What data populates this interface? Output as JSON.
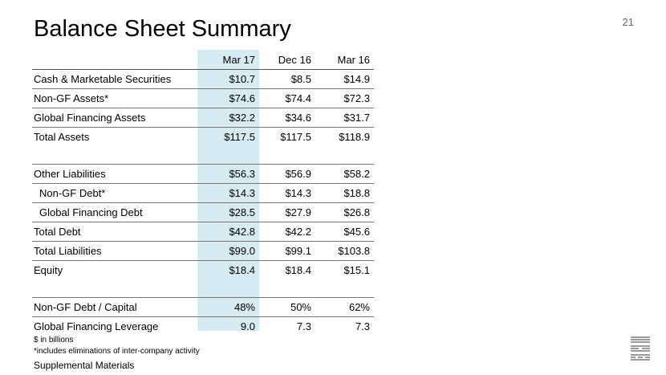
{
  "title": "Balance Sheet Summary",
  "page_number": "21",
  "columns": [
    "Mar 17",
    "Dec 16",
    "Mar 16"
  ],
  "rows": [
    {
      "label": "Cash & Marketable Securities",
      "values": [
        "$10.7",
        "$8.5",
        "$14.9"
      ]
    },
    {
      "label": "Non-GF Assets*",
      "values": [
        "$74.6",
        "$74.4",
        "$72.3"
      ]
    },
    {
      "label": "Global Financing Assets",
      "values": [
        "$32.2",
        "$34.6",
        "$31.7"
      ]
    },
    {
      "label": "Total Assets",
      "values": [
        "$117.5",
        "$117.5",
        "$118.9"
      ]
    },
    {
      "label": "Other Liabilities",
      "values": [
        "$56.3",
        "$56.9",
        "$58.2"
      ]
    },
    {
      "label": "Non-GF Debt*",
      "values": [
        "$14.3",
        "$14.3",
        "$18.8"
      ]
    },
    {
      "label": "Global Financing Debt",
      "values": [
        "$28.5",
        "$27.9",
        "$26.8"
      ]
    },
    {
      "label": "Total Debt",
      "values": [
        "$42.8",
        "$42.2",
        "$45.6"
      ]
    },
    {
      "label": "Total Liabilities",
      "values": [
        "$99.0",
        "$99.1",
        "$103.8"
      ]
    },
    {
      "label": "Equity",
      "values": [
        "$18.4",
        "$18.4",
        "$15.1"
      ]
    },
    {
      "label": "Non-GF Debt / Capital",
      "values": [
        "48%",
        "50%",
        "62%"
      ]
    },
    {
      "label": "Global Financing Leverage",
      "values": [
        "9.0",
        "7.3",
        "7.3"
      ]
    }
  ],
  "footnotes": [
    "$ in billions",
    "*includes eliminations of inter-company activity"
  ],
  "supplemental": "Supplemental Materials",
  "logo_text": "IBM",
  "colors": {
    "highlight": "#d6ebf2",
    "logo": "#9a9a9a"
  }
}
